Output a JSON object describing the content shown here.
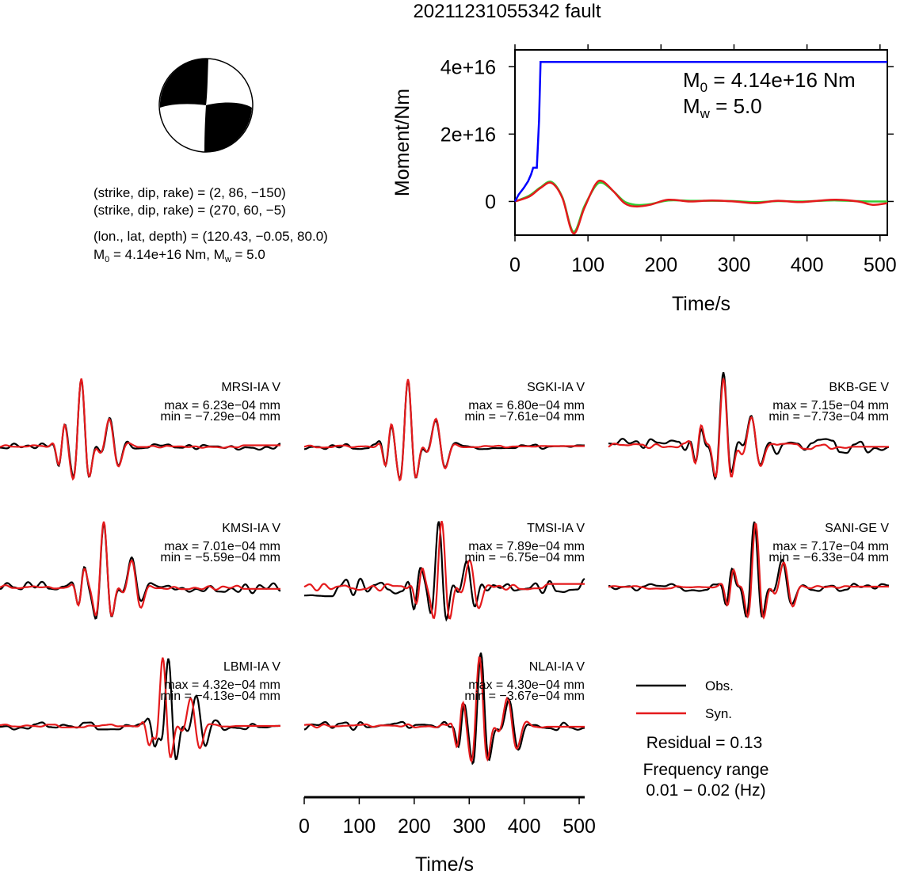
{
  "title": "20211231055342 fault",
  "colors": {
    "obs": "#000000",
    "syn": "#e41a1c",
    "moment_rate": "#0000ff",
    "syn_moment": "#e41a1c",
    "obs_moment": "#33cc33"
  },
  "info": {
    "line1": "(strike, dip, rake) = (2, 86, −150)",
    "line2": "(strike, dip, rake) = (270, 60, −5)",
    "line3": "(lon., lat, depth) = (120.43, −0.05, 80.0)",
    "m0_symbol": "M",
    "m0_sub": "0",
    "m0_text": " = 4.14e+16 Nm, M",
    "mw_sub": "w",
    "mw_text": " = 5.0"
  },
  "moment_panel": {
    "m0_symbol": "M",
    "m0_sub": "0",
    "m0_value": " = 4.14e+16 Nm",
    "mw_symbol": "M",
    "mw_sub": "w",
    "mw_value": " = 5.0"
  },
  "chart_data": [
    {
      "type": "line",
      "name": "moment",
      "xlabel": "Time/s",
      "ylabel": "Moment/Nm",
      "xlim": [
        0,
        510
      ],
      "ylim": [
        -1e+16,
        4.5e+16
      ],
      "xticks": [
        0,
        100,
        200,
        300,
        400,
        500
      ],
      "xtick_labels": [
        "0",
        "100",
        "200",
        "300",
        "400",
        "500"
      ],
      "yticks": [
        0,
        2e+16,
        4e+16
      ],
      "ytick_labels": [
        "0",
        "2e+16",
        "4e+16"
      ],
      "series": [
        {
          "key": "cumulative_moment",
          "color": "#0000ff",
          "x": [
            0,
            5,
            12,
            18,
            22,
            25,
            28,
            30,
            33,
            35,
            510
          ],
          "y": [
            0,
            2000000000000000.0,
            4000000000000000.0,
            6000000000000000.0,
            8000000000000000.0,
            1e+16,
            1e+16,
            1e+16,
            2.4e+16,
            4.14e+16,
            4.14e+16
          ]
        },
        {
          "key": "syn_moment_wave",
          "color": "#e41a1c",
          "x": [
            0,
            20,
            35,
            50,
            65,
            80,
            95,
            110,
            120,
            135,
            150,
            165,
            185,
            210,
            240,
            270,
            300,
            330,
            360,
            390,
            420,
            440,
            470,
            490,
            510
          ],
          "y": [
            0,
            1500000000000000.0,
            4000000000000000.0,
            5500000000000000.0,
            1000000000000000.0,
            -9500000000000000.0,
            -2000000000000000.0,
            5000000000000000.0,
            6000000000000000.0,
            3000000000000000.0,
            -500000000000000.0,
            -1500000000000000.0,
            -1000000000000000.0,
            500000000000000.0,
            0.0,
            300000000000000.0,
            0.0,
            -500000000000000.0,
            200000000000000.0,
            -200000000000000.0,
            300000000000000.0,
            500000000000000.0,
            0.0,
            -1000000000000000.0,
            -500000000000000.0
          ]
        },
        {
          "key": "obs_moment_wave",
          "color": "#33cc33",
          "x": [
            0,
            20,
            35,
            50,
            65,
            80,
            95,
            110,
            120,
            135,
            150,
            165,
            185,
            210,
            240,
            270,
            300,
            330,
            360,
            390,
            420,
            440,
            470,
            490,
            510
          ],
          "y": [
            0,
            1800000000000000.0,
            4200000000000000.0,
            5800000000000000.0,
            1200000000000000.0,
            -9000000000000000.0,
            -1500000000000000.0,
            4500000000000000.0,
            5500000000000000.0,
            3000000000000000.0,
            0.0,
            -1000000000000000.0,
            -800000000000000.0,
            300000000000000.0,
            200000000000000.0,
            200000000000000.0,
            100000000000000.0,
            -200000000000000.0,
            100000000000000.0,
            0.0,
            200000000000000.0,
            300000000000000.0,
            100000000000000.0,
            0.0,
            0.0
          ]
        }
      ]
    },
    {
      "type": "line",
      "name": "waveforms",
      "xlabel": "Time/s",
      "xlim": [
        0,
        510
      ],
      "xticks": [
        0,
        100,
        200,
        300,
        400,
        500
      ],
      "xtick_labels": [
        "0",
        "100",
        "200",
        "300",
        "400",
        "500"
      ],
      "stations": [
        {
          "name": "MRSI-IA V",
          "max": "max = 6.23e−04 mm",
          "min": "min = −7.29e−04 mm",
          "col": 0,
          "row": 0,
          "p": 0.22,
          "s": 0.34,
          "shift": 0,
          "noise": 0.05
        },
        {
          "name": "SGKI-IA V",
          "max": "max = 6.80e−04 mm",
          "min": "min = −7.61e−04 mm",
          "col": 1,
          "row": 0,
          "p": 0.3,
          "s": 0.42,
          "shift": 0,
          "noise": 0.04
        },
        {
          "name": "BKB-GE V",
          "max": "max = 7.15e−04 mm",
          "min": "min = −7.73e−04 mm",
          "col": 2,
          "row": 0,
          "p": 0.32,
          "s": 0.46,
          "shift": 0,
          "noise": 0.12
        },
        {
          "name": "KMSI-IA V",
          "max": "max = 7.01e−04 mm",
          "min": "min = −5.59e−04 mm",
          "col": 0,
          "row": 1,
          "p": 0.29,
          "s": 0.42,
          "shift": 0,
          "noise": 0.1
        },
        {
          "name": "TMSI-IA V",
          "max": "max = 7.89e−04 mm",
          "min": "min = −6.75e−04 mm",
          "col": 1,
          "row": 1,
          "p": 0.4,
          "s": 0.53,
          "shift": 0.01,
          "noise": 0.14
        },
        {
          "name": "SANI-GE V",
          "max": "max = 7.17e−04 mm",
          "min": "min = −6.33e−04 mm",
          "col": 2,
          "row": 1,
          "p": 0.43,
          "s": 0.57,
          "shift": 0.005,
          "noise": 0.06
        },
        {
          "name": "LBMI-IA V",
          "max": "max = 4.32e−04 mm",
          "min": "min = −4.13e−04 mm",
          "col": 0,
          "row": 2,
          "p": 0.56,
          "s": 0.65,
          "shift": -0.02,
          "noise": 0.06
        },
        {
          "name": "NLAI-IA V",
          "max": "max = 4.30e−04 mm",
          "min": "min = −3.67e−04 mm",
          "col": 1,
          "row": 2,
          "p": 0.56,
          "s": 0.68,
          "shift": -0.005,
          "noise": 0.06
        }
      ]
    }
  ],
  "legend": {
    "obs_label": "Obs.",
    "syn_label": "Syn.",
    "residual": "Residual = 0.13",
    "freq_title": "Frequency range",
    "freq_range": "0.01 − 0.02 (Hz)"
  }
}
